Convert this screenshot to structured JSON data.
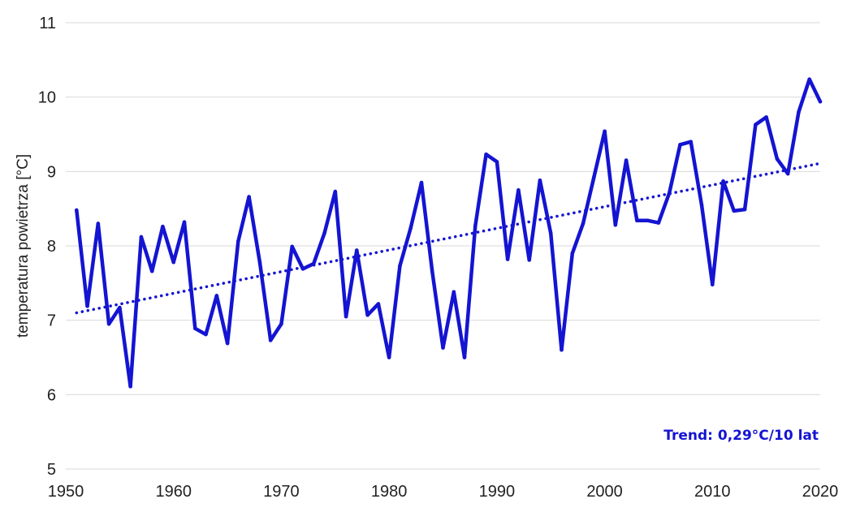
{
  "chart_data": {
    "type": "line",
    "title": "",
    "xlabel": "",
    "ylabel": "temperatura powietrza [°C]",
    "xlim": [
      1950,
      2020
    ],
    "ylim": [
      5,
      11
    ],
    "xticks": [
      1950,
      1960,
      1970,
      1980,
      1990,
      2000,
      2010,
      2020
    ],
    "yticks": [
      5,
      6,
      7,
      8,
      9,
      10,
      11
    ],
    "grid": "horizontal",
    "colors": {
      "series": "#1414d2",
      "trend": "#1414d2",
      "grid": "#d9d9d9"
    },
    "annotation": "Trend: 0,29°C/10 lat",
    "series": [
      {
        "style": "solid",
        "x": [
          1951,
          1952,
          1953,
          1954,
          1955,
          1956,
          1957,
          1958,
          1959,
          1960,
          1961,
          1962,
          1963,
          1964,
          1965,
          1966,
          1967,
          1968,
          1969,
          1970,
          1971,
          1972,
          1973,
          1974,
          1975,
          1976,
          1977,
          1978,
          1979,
          1980,
          1981,
          1982,
          1983,
          1984,
          1985,
          1986,
          1987,
          1988,
          1989,
          1990,
          1991,
          1992,
          1993,
          1994,
          1995,
          1996,
          1997,
          1998,
          1999,
          2000,
          2001,
          2002,
          2003,
          2004,
          2005,
          2006,
          2007,
          2008,
          2009,
          2010,
          2011,
          2012,
          2013,
          2014,
          2015,
          2016,
          2017,
          2018,
          2019,
          2020
        ],
        "values": [
          8.48,
          7.19,
          8.3,
          6.95,
          7.17,
          6.11,
          8.12,
          7.66,
          8.26,
          7.78,
          8.32,
          6.89,
          6.81,
          7.33,
          6.69,
          8.06,
          8.66,
          7.78,
          6.73,
          6.95,
          7.99,
          7.69,
          7.76,
          8.17,
          8.73,
          7.05,
          7.94,
          7.07,
          7.22,
          6.5,
          7.73,
          8.24,
          8.85,
          7.66,
          6.63,
          7.38,
          6.5,
          8.27,
          9.23,
          9.13,
          7.82,
          8.75,
          7.81,
          8.88,
          8.17,
          6.6,
          7.9,
          8.3,
          8.92,
          9.54,
          8.28,
          9.15,
          8.34,
          8.34,
          8.31,
          8.71,
          9.36,
          9.4,
          8.55,
          7.48,
          8.87,
          8.47,
          8.49,
          9.63,
          9.73,
          9.17,
          8.97,
          9.8,
          10.24,
          9.94
        ]
      },
      {
        "style": "dotted",
        "x": [
          1951,
          2020
        ],
        "values": [
          7.1,
          9.11
        ]
      }
    ]
  }
}
